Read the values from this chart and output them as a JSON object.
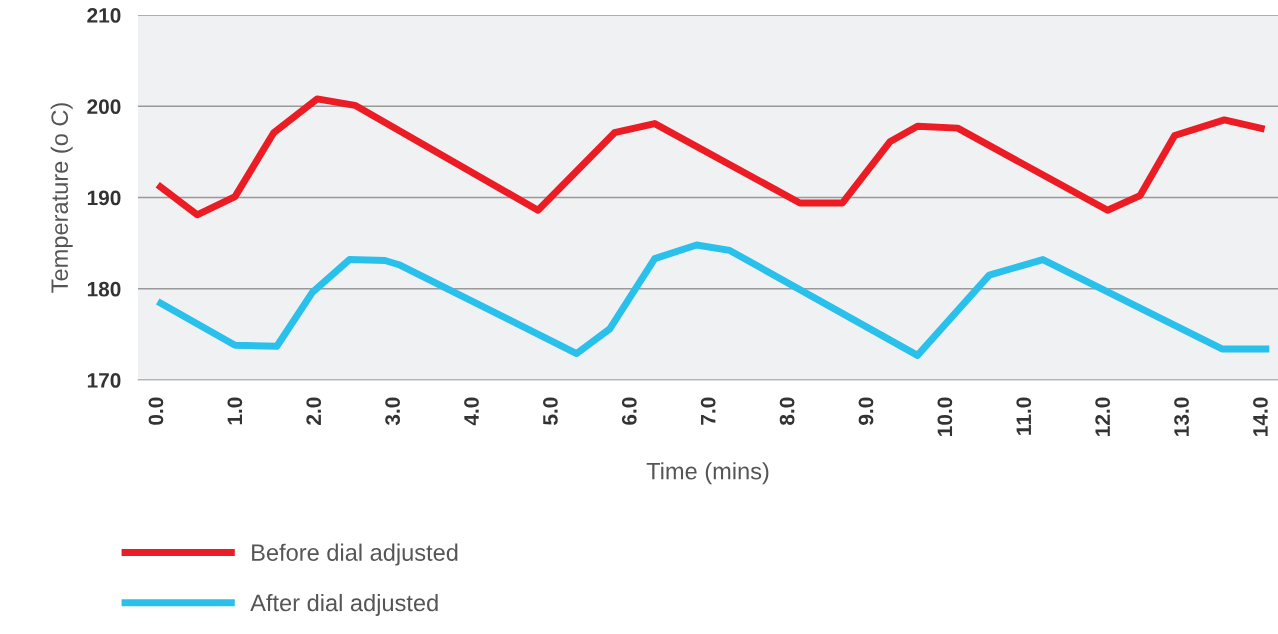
{
  "chart_data": {
    "type": "line",
    "xlabel": "Time (mins)",
    "ylabel": "Temperature (o C)",
    "xlim": [
      -0.25,
      14.2
    ],
    "ylim": [
      170,
      210
    ],
    "xticks": [
      {
        "value": 0,
        "label": "0.0"
      },
      {
        "value": 1,
        "label": "1.0"
      },
      {
        "value": 2,
        "label": "2.0"
      },
      {
        "value": 3,
        "label": "3.0"
      },
      {
        "value": 4,
        "label": "4.0"
      },
      {
        "value": 5,
        "label": "5.0"
      },
      {
        "value": 6,
        "label": "6.0"
      },
      {
        "value": 7,
        "label": "7.0"
      },
      {
        "value": 8,
        "label": "8.0"
      },
      {
        "value": 9,
        "label": "9.0"
      },
      {
        "value": 10,
        "label": "10.0"
      },
      {
        "value": 11,
        "label": "11.0"
      },
      {
        "value": 12,
        "label": "12.0"
      },
      {
        "value": 13,
        "label": "13.0"
      },
      {
        "value": 14,
        "label": "14.0"
      }
    ],
    "yticks": [
      170,
      180,
      190,
      200,
      210
    ],
    "grid": "y",
    "legend": "bottom left",
    "marker": "none",
    "line_style": "solid",
    "series": [
      {
        "name": "Before dial adjusted",
        "color": "#ec1c24",
        "x": [
          0,
          0.5,
          0.98,
          1.47,
          2.02,
          2.5,
          4.82,
          5.79,
          6.3,
          8.14,
          8.68,
          9.28,
          9.63,
          10.14,
          12.04,
          12.45,
          12.89,
          13.52,
          14.03
        ],
        "values": [
          191.4,
          188.1,
          190.1,
          197.1,
          200.8,
          200.1,
          188.6,
          197.1,
          198.1,
          189.4,
          189.4,
          196.1,
          197.8,
          197.6,
          188.6,
          190.2,
          196.8,
          198.5,
          197.5
        ]
      },
      {
        "name": "After dial adjusted",
        "color": "#29c0ec",
        "x": [
          0,
          0.98,
          1.51,
          1.96,
          2.43,
          2.88,
          3.07,
          5.31,
          5.73,
          6.3,
          6.83,
          7.25,
          9.63,
          10.54,
          11.22,
          13.49,
          14.09
        ],
        "values": [
          178.6,
          173.8,
          173.7,
          179.6,
          183.2,
          183.1,
          182.6,
          172.9,
          175.6,
          183.3,
          184.8,
          184.2,
          172.7,
          181.5,
          183.2,
          173.4,
          173.4
        ]
      }
    ]
  }
}
